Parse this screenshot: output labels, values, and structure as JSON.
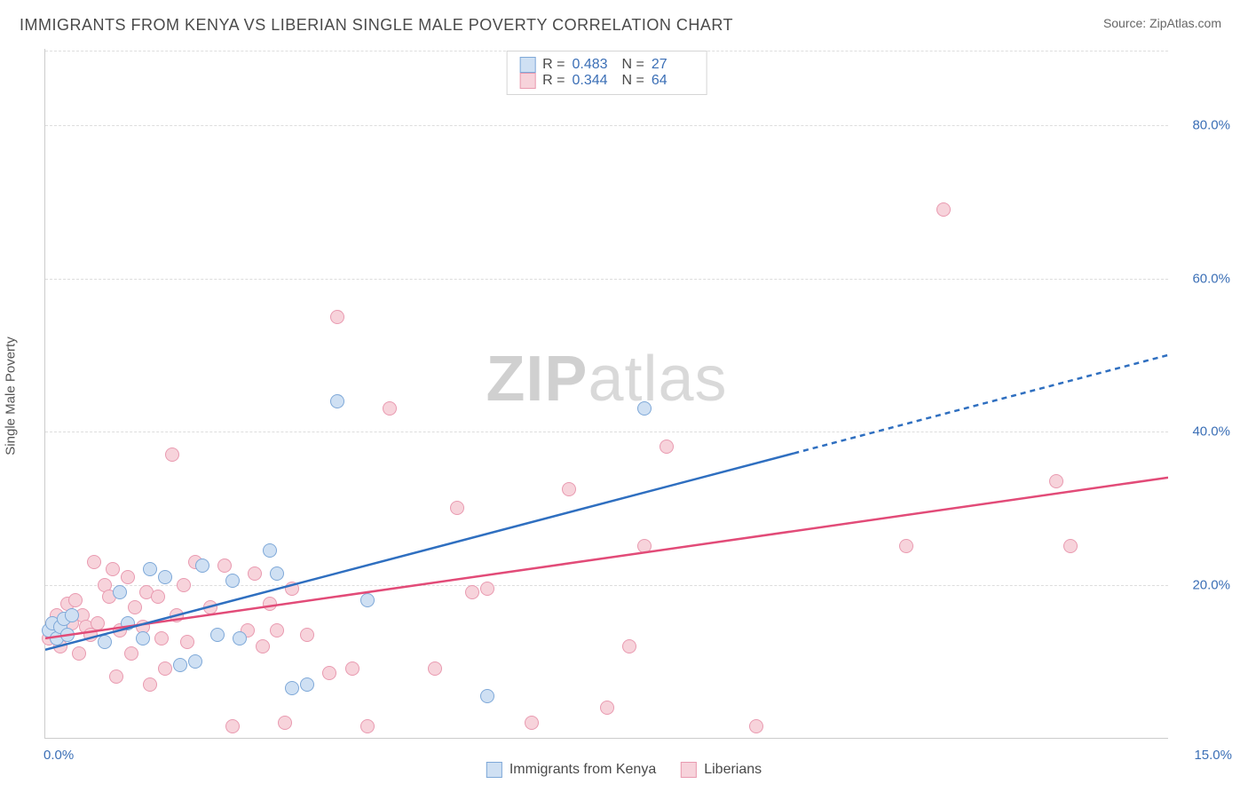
{
  "header": {
    "title": "IMMIGRANTS FROM KENYA VS LIBERIAN SINGLE MALE POVERTY CORRELATION CHART",
    "source_prefix": "Source: ",
    "source_name": "ZipAtlas.com"
  },
  "chart": {
    "type": "scatter",
    "ylabel": "Single Male Poverty",
    "xlim": [
      0,
      15
    ],
    "ylim": [
      0,
      90
    ],
    "xtick_labels": {
      "min": "0.0%",
      "max": "15.0%"
    },
    "ytick_positions": [
      20,
      40,
      60,
      80
    ],
    "ytick_labels": [
      "20.0%",
      "40.0%",
      "60.0%",
      "80.0%"
    ],
    "grid_color": "#dddddd",
    "axis_color": "#cccccc",
    "background_color": "#ffffff",
    "watermark": {
      "bold": "ZIP",
      "rest": "atlas",
      "color_bold": "#d0d0d0",
      "color_rest": "#d9d9d9",
      "fontsize": 72
    },
    "series": {
      "kenya": {
        "label": "Immigrants from Kenya",
        "fill": "#cfe0f3",
        "stroke": "#7ea8d8",
        "line_color": "#2f6fc0",
        "line_width": 2.5,
        "line_dash_after_x": 10,
        "stats": {
          "R": "0.483",
          "N": "27"
        },
        "trend": {
          "x1": 0,
          "y1": 11.5,
          "x2": 15,
          "y2": 50
        },
        "points": [
          [
            0.05,
            14
          ],
          [
            0.1,
            15
          ],
          [
            0.15,
            13
          ],
          [
            0.2,
            14.5
          ],
          [
            0.25,
            15.5
          ],
          [
            0.3,
            13.5
          ],
          [
            0.35,
            16
          ],
          [
            0.8,
            12.5
          ],
          [
            1.0,
            19
          ],
          [
            1.1,
            15
          ],
          [
            1.3,
            13
          ],
          [
            1.4,
            22
          ],
          [
            1.6,
            21
          ],
          [
            1.8,
            9.5
          ],
          [
            2.0,
            10
          ],
          [
            2.1,
            22.5
          ],
          [
            2.3,
            13.5
          ],
          [
            2.5,
            20.5
          ],
          [
            2.6,
            13
          ],
          [
            3.0,
            24.5
          ],
          [
            3.1,
            21.5
          ],
          [
            3.3,
            6.5
          ],
          [
            3.5,
            7
          ],
          [
            3.9,
            44
          ],
          [
            4.3,
            18
          ],
          [
            5.9,
            5.5
          ],
          [
            8.0,
            43
          ]
        ]
      },
      "liberia": {
        "label": "Liberians",
        "fill": "#f7d3db",
        "stroke": "#e99ab0",
        "line_color": "#e24b78",
        "line_width": 2.5,
        "stats": {
          "R": "0.344",
          "N": "64"
        },
        "trend": {
          "x1": 0,
          "y1": 13,
          "x2": 15,
          "y2": 34
        },
        "points": [
          [
            0.05,
            13
          ],
          [
            0.1,
            15
          ],
          [
            0.15,
            16
          ],
          [
            0.2,
            12
          ],
          [
            0.25,
            14
          ],
          [
            0.3,
            17.5
          ],
          [
            0.35,
            15
          ],
          [
            0.4,
            18
          ],
          [
            0.45,
            11
          ],
          [
            0.5,
            16
          ],
          [
            0.55,
            14.5
          ],
          [
            0.6,
            13.5
          ],
          [
            0.65,
            23
          ],
          [
            0.7,
            15
          ],
          [
            0.8,
            20
          ],
          [
            0.85,
            18.5
          ],
          [
            0.9,
            22
          ],
          [
            0.95,
            8
          ],
          [
            1.0,
            14
          ],
          [
            1.1,
            21
          ],
          [
            1.15,
            11
          ],
          [
            1.2,
            17
          ],
          [
            1.3,
            14.5
          ],
          [
            1.35,
            19
          ],
          [
            1.4,
            7
          ],
          [
            1.5,
            18.5
          ],
          [
            1.55,
            13
          ],
          [
            1.6,
            9
          ],
          [
            1.7,
            37
          ],
          [
            1.75,
            16
          ],
          [
            1.85,
            20
          ],
          [
            1.9,
            12.5
          ],
          [
            2.0,
            23
          ],
          [
            2.2,
            17
          ],
          [
            2.4,
            22.5
          ],
          [
            2.5,
            1.5
          ],
          [
            2.7,
            14
          ],
          [
            2.8,
            21.5
          ],
          [
            2.9,
            12
          ],
          [
            3.0,
            17.5
          ],
          [
            3.1,
            14
          ],
          [
            3.2,
            2
          ],
          [
            3.3,
            19.5
          ],
          [
            3.5,
            13.5
          ],
          [
            3.8,
            8.5
          ],
          [
            3.9,
            55
          ],
          [
            4.1,
            9
          ],
          [
            4.3,
            1.5
          ],
          [
            4.6,
            43
          ],
          [
            5.2,
            9
          ],
          [
            5.5,
            30
          ],
          [
            5.7,
            19
          ],
          [
            5.9,
            19.5
          ],
          [
            6.5,
            2
          ],
          [
            7.0,
            32.5
          ],
          [
            7.5,
            4
          ],
          [
            7.8,
            12
          ],
          [
            8.0,
            25
          ],
          [
            8.3,
            38
          ],
          [
            9.5,
            1.5
          ],
          [
            11.5,
            25
          ],
          [
            12.0,
            69
          ],
          [
            13.5,
            33.5
          ],
          [
            13.7,
            25
          ]
        ]
      }
    },
    "legend_top": {
      "r_label": "R =",
      "n_label": "N ="
    }
  }
}
